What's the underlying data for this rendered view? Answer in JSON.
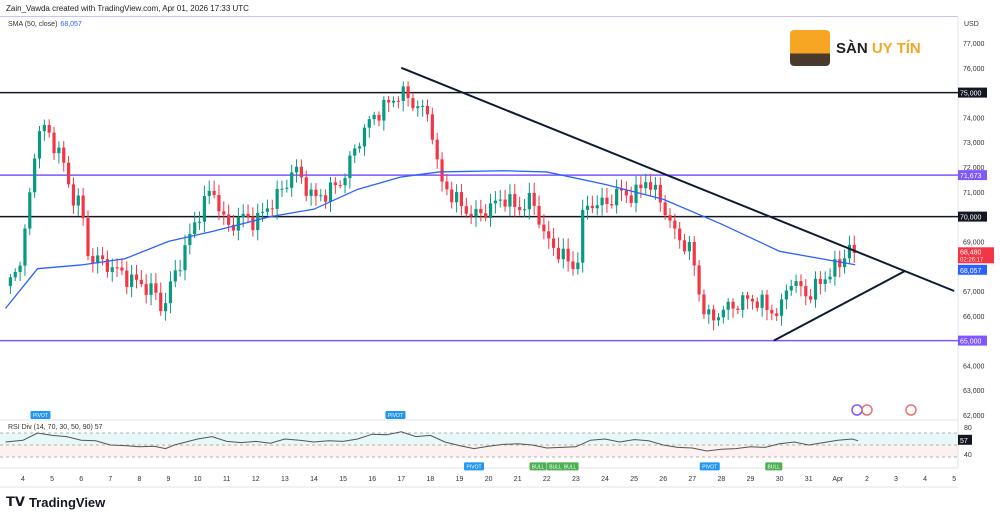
{
  "header": {
    "attribution": "Zain_Vawda created with TradingView.com, Apr 01, 2026 17:33 UTC",
    "sma_label": "SMA (50, close)",
    "sma_value": "68,057",
    "rsi_label": "RSI Div (14, 70, 30, 50, 90)",
    "rsi_value": "57"
  },
  "logo": {
    "part1": "SÀN",
    "part2": "UY TÍN"
  },
  "footer": {
    "brand": "TradingView"
  },
  "colors": {
    "up": "#089981",
    "down": "#f23645",
    "sma": "#2962ff",
    "purple": "#7e57ff",
    "black": "#131722",
    "trend": "#0d1b33",
    "rsi": "#555555"
  },
  "chart_data": {
    "type": "candlestick",
    "currency": "USD",
    "y_ticks": [
      "77,000",
      "76,000",
      "75,000",
      "74,000",
      "73,000",
      "72,000",
      "71,000",
      "70,000",
      "69,000",
      "67,000",
      "66,000",
      "64,000",
      "63,000",
      "62,000"
    ],
    "y_range": [
      62000,
      77000
    ],
    "x_ticks": [
      "4",
      "5",
      "6",
      "7",
      "8",
      "9",
      "10",
      "11",
      "12",
      "13",
      "14",
      "15",
      "16",
      "17",
      "18",
      "19",
      "20",
      "21",
      "22",
      "23",
      "24",
      "25",
      "26",
      "27",
      "28",
      "29",
      "30",
      "31",
      "Apr",
      "2",
      "3",
      "4",
      "5"
    ],
    "price_path": [
      [
        3.4,
        67200
      ],
      [
        3.8,
        67800
      ],
      [
        4.1,
        69500
      ],
      [
        4.4,
        72500
      ],
      [
        4.6,
        73800
      ],
      [
        5,
        73000
      ],
      [
        5.3,
        72600
      ],
      [
        5.6,
        71000
      ],
      [
        6,
        70500
      ],
      [
        6.2,
        68500
      ],
      [
        6.6,
        68200
      ],
      [
        7,
        68000
      ],
      [
        7.5,
        67600
      ],
      [
        8,
        67300
      ],
      [
        8.5,
        67000
      ],
      [
        8.8,
        66200
      ],
      [
        9,
        67000
      ],
      [
        9.5,
        68500
      ],
      [
        10,
        70000
      ],
      [
        10.5,
        71200
      ],
      [
        11,
        69500
      ],
      [
        11.5,
        70000
      ],
      [
        12,
        69800
      ],
      [
        12.5,
        70500
      ],
      [
        13,
        71200
      ],
      [
        13.3,
        72000
      ],
      [
        14,
        70700
      ],
      [
        14.5,
        71000
      ],
      [
        15,
        71500
      ],
      [
        15.5,
        73000
      ],
      [
        16,
        74000
      ],
      [
        16.5,
        74500
      ],
      [
        17,
        75000
      ],
      [
        17.5,
        74500
      ],
      [
        18,
        74000
      ],
      [
        18.3,
        71500
      ],
      [
        19,
        70500
      ],
      [
        19.5,
        70000
      ],
      [
        20,
        70300
      ],
      [
        20.5,
        70800
      ],
      [
        21,
        70300
      ],
      [
        21.5,
        70700
      ],
      [
        22,
        69000
      ],
      [
        22.5,
        68500
      ],
      [
        23,
        67800
      ],
      [
        23.3,
        70500
      ],
      [
        24,
        70500
      ],
      [
        24.5,
        71000
      ],
      [
        25,
        70800
      ],
      [
        25.4,
        71500
      ],
      [
        26,
        70500
      ],
      [
        26.3,
        69500
      ],
      [
        27,
        68500
      ],
      [
        27.3,
        66500
      ],
      [
        27.6,
        65800
      ],
      [
        28,
        66200
      ],
      [
        29,
        66700
      ],
      [
        29.5,
        66400
      ],
      [
        30,
        66000
      ],
      [
        30.3,
        67500
      ],
      [
        31,
        66800
      ],
      [
        31.5,
        67500
      ],
      [
        32,
        68000
      ],
      [
        32.4,
        68800
      ],
      [
        32.6,
        68480
      ]
    ],
    "sma_50": [
      [
        3.4,
        66300
      ],
      [
        4.5,
        67900
      ],
      [
        6,
        68050
      ],
      [
        7.5,
        68300
      ],
      [
        9,
        69000
      ],
      [
        10.5,
        69400
      ],
      [
        12.5,
        70000
      ],
      [
        14,
        70300
      ],
      [
        15.5,
        71100
      ],
      [
        17,
        71600
      ],
      [
        18.3,
        71800
      ],
      [
        20.5,
        71850
      ],
      [
        22,
        71800
      ],
      [
        24,
        71300
      ],
      [
        26,
        70700
      ],
      [
        28,
        69700
      ],
      [
        30,
        68600
      ],
      [
        32.6,
        68057
      ]
    ],
    "last_price": "68,480",
    "countdown": "02:26:17",
    "sma_tag": "68,057",
    "horizontal_levels": [
      {
        "price": 75000,
        "label": "75,000",
        "color": "#131722"
      },
      {
        "price": 71673,
        "label": "71,673",
        "color": "#7e57ff"
      },
      {
        "price": 70000,
        "label": "70,000",
        "color": "#131722"
      },
      {
        "price": 65000,
        "label": "65,000",
        "color": "#7e57ff"
      }
    ],
    "trendlines": [
      {
        "from": [
          17,
          76000
        ],
        "to": [
          36,
          67000
        ]
      },
      {
        "from": [
          29.8,
          65000
        ],
        "to": [
          34.3,
          67800
        ]
      }
    ],
    "rsi": {
      "levels": [
        70,
        50,
        30
      ],
      "ticks": [
        "80",
        "40"
      ],
      "values": [
        [
          3.4,
          55
        ],
        [
          4,
          58
        ],
        [
          4.5,
          70
        ],
        [
          5,
          66
        ],
        [
          5.5,
          64
        ],
        [
          6,
          58
        ],
        [
          6.5,
          57
        ],
        [
          7,
          50
        ],
        [
          7.5,
          49
        ],
        [
          8,
          47
        ],
        [
          8.5,
          48
        ],
        [
          8.9,
          44
        ],
        [
          9.2,
          50
        ],
        [
          10,
          60
        ],
        [
          10.5,
          64
        ],
        [
          11,
          56
        ],
        [
          11.5,
          54
        ],
        [
          12,
          56
        ],
        [
          12.5,
          53
        ],
        [
          13,
          60
        ],
        [
          13.5,
          58
        ],
        [
          14,
          55
        ],
        [
          14.5,
          57
        ],
        [
          15,
          56
        ],
        [
          15.5,
          60
        ],
        [
          16,
          68
        ],
        [
          16.5,
          67
        ],
        [
          17,
          72
        ],
        [
          17.5,
          64
        ],
        [
          18,
          66
        ],
        [
          18.5,
          55
        ],
        [
          19,
          49
        ],
        [
          19.5,
          44
        ],
        [
          20,
          48
        ],
        [
          20.5,
          51
        ],
        [
          21,
          52
        ],
        [
          21.5,
          50
        ],
        [
          22,
          45
        ],
        [
          22.5,
          46
        ],
        [
          23,
          47
        ],
        [
          23.5,
          58
        ],
        [
          24,
          60
        ],
        [
          24.5,
          55
        ],
        [
          25,
          59
        ],
        [
          25.5,
          57
        ],
        [
          26,
          50
        ],
        [
          26.5,
          46
        ],
        [
          27,
          45
        ],
        [
          27.5,
          40
        ],
        [
          28,
          43
        ],
        [
          28.5,
          44
        ],
        [
          29,
          47
        ],
        [
          29.5,
          46
        ],
        [
          30,
          52
        ],
        [
          30.5,
          55
        ],
        [
          31,
          50
        ],
        [
          31.5,
          54
        ],
        [
          32,
          58
        ],
        [
          32.5,
          60
        ],
        [
          32.7,
          57
        ]
      ]
    },
    "markers": [
      {
        "text": "PIVOT",
        "t": 4.6,
        "pos": "top",
        "color": "#2196f3"
      },
      {
        "text": "PIVOT",
        "t": 16.8,
        "pos": "top",
        "color": "#2196f3"
      },
      {
        "text": "PIVOT",
        "t": 19.5,
        "pos": "bottom",
        "color": "#2196f3"
      },
      {
        "text": "BULL",
        "t": 21.7,
        "pos": "bottom",
        "color": "#4caf50"
      },
      {
        "text": "BULL",
        "t": 22.3,
        "pos": "bottom",
        "color": "#4caf50"
      },
      {
        "text": "BULL",
        "t": 22.8,
        "pos": "bottom",
        "color": "#4caf50"
      },
      {
        "text": "PIVOT",
        "t": 27.6,
        "pos": "bottom",
        "color": "#2196f3"
      },
      {
        "text": "BULL",
        "t": 29.8,
        "pos": "bottom",
        "color": "#4caf50"
      }
    ]
  }
}
